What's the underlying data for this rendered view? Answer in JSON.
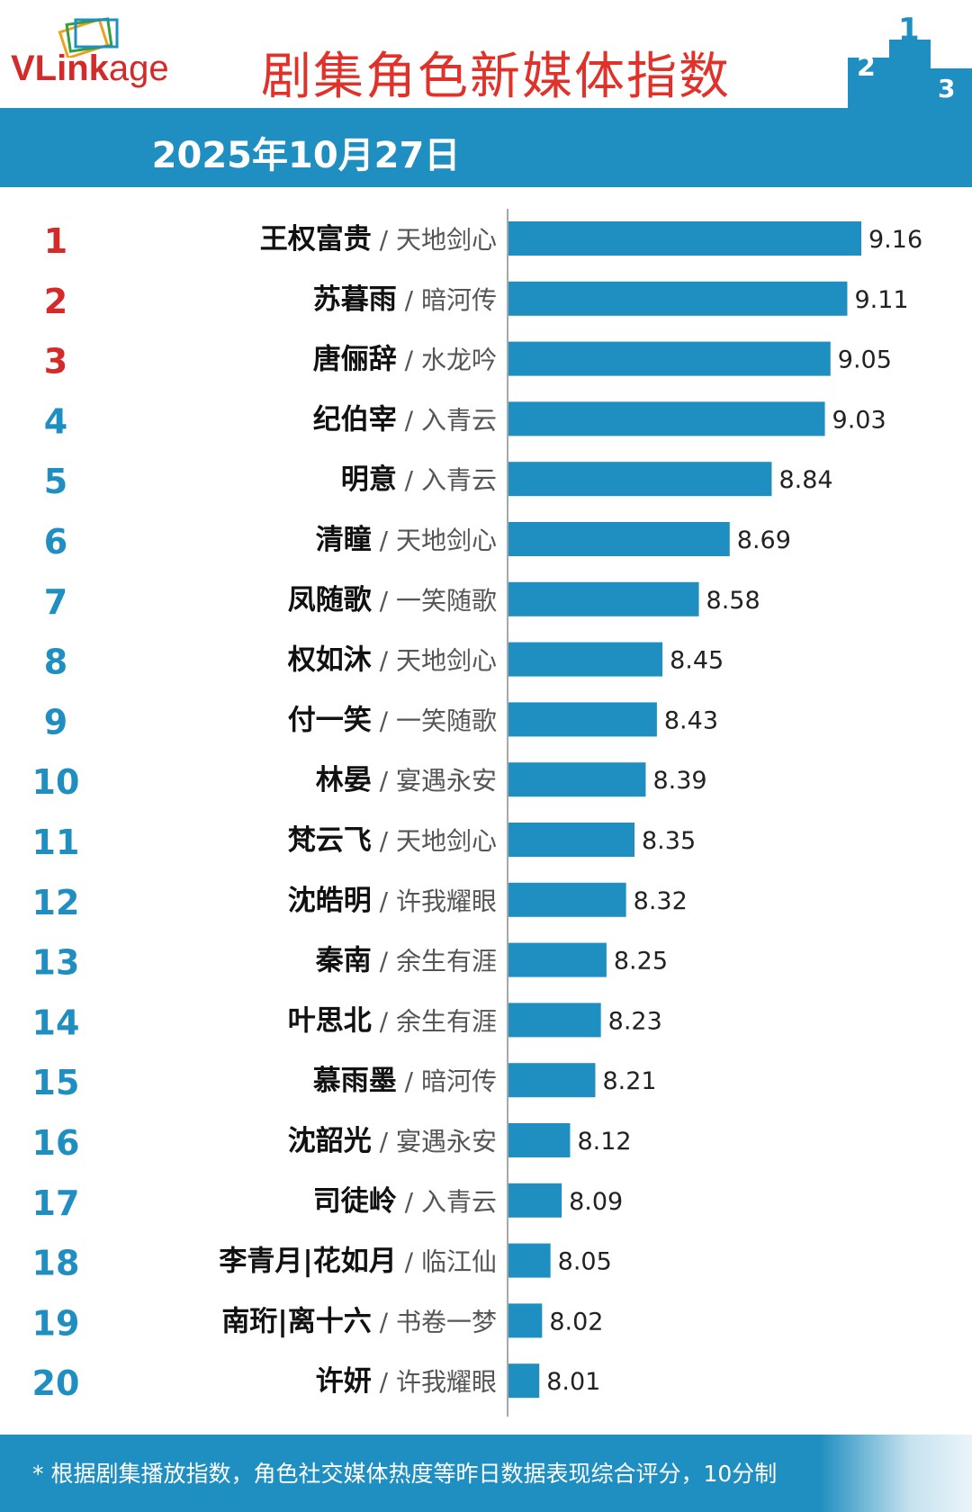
{
  "header": {
    "logo_text_v": "VLink",
    "logo_text_age": "age",
    "title": "剧集角色新媒体指数",
    "podium_numbers": [
      "2",
      "1",
      "3"
    ]
  },
  "date_band": {
    "date": "2025年10月27日"
  },
  "colors": {
    "bar": "#1f8ec0",
    "rank_top3": "#d42a2a",
    "rank_other": "#1f8ec0",
    "band": "#1f8ec0",
    "title": "#e0322a"
  },
  "chart_data": {
    "type": "bar",
    "orientation": "horizontal",
    "ranks": [
      "1",
      "2",
      "3",
      "4",
      "5",
      "6",
      "7",
      "8",
      "9",
      "10",
      "11",
      "12",
      "13",
      "14",
      "15",
      "16",
      "17",
      "18",
      "19",
      "20"
    ],
    "categories": [
      "王权富贵",
      "苏暮雨",
      "唐俪辞",
      "纪伯宰",
      "明意",
      "清瞳",
      "凤随歌",
      "权如沐",
      "付一笑",
      "林晏",
      "梵云飞",
      "沈皓明",
      "秦南",
      "叶思北",
      "慕雨墨",
      "沈韶光",
      "司徒岭",
      "李青月|花如月",
      "南珩|离十六",
      "许妍"
    ],
    "dramas": [
      "天地剑心",
      "暗河传",
      "水龙吟",
      "入青云",
      "入青云",
      "天地剑心",
      "一笑随歌",
      "天地剑心",
      "一笑随歌",
      "宴遇永安",
      "天地剑心",
      "许我耀眼",
      "余生有涯",
      "余生有涯",
      "暗河传",
      "宴遇永安",
      "入青云",
      "临江仙",
      "书卷一梦",
      "许我耀眼"
    ],
    "values": [
      9.16,
      9.11,
      9.05,
      9.03,
      8.84,
      8.69,
      8.58,
      8.45,
      8.43,
      8.39,
      8.35,
      8.32,
      8.25,
      8.23,
      8.21,
      8.12,
      8.09,
      8.05,
      8.02,
      8.01
    ],
    "value_labels": [
      "9.16",
      "9.11",
      "9.05",
      "9.03",
      "8.84",
      "8.69",
      "8.58",
      "8.45",
      "8.43",
      "8.39",
      "8.35",
      "8.32",
      "8.25",
      "8.23",
      "8.21",
      "8.12",
      "8.09",
      "8.05",
      "8.02",
      "8.01"
    ],
    "xlim": [
      7.9,
      9.16
    ],
    "separator": "/"
  },
  "footer": {
    "note": "* 根据剧集播放指数，角色社交媒体热度等昨日数据表现综合评分，10分制"
  }
}
